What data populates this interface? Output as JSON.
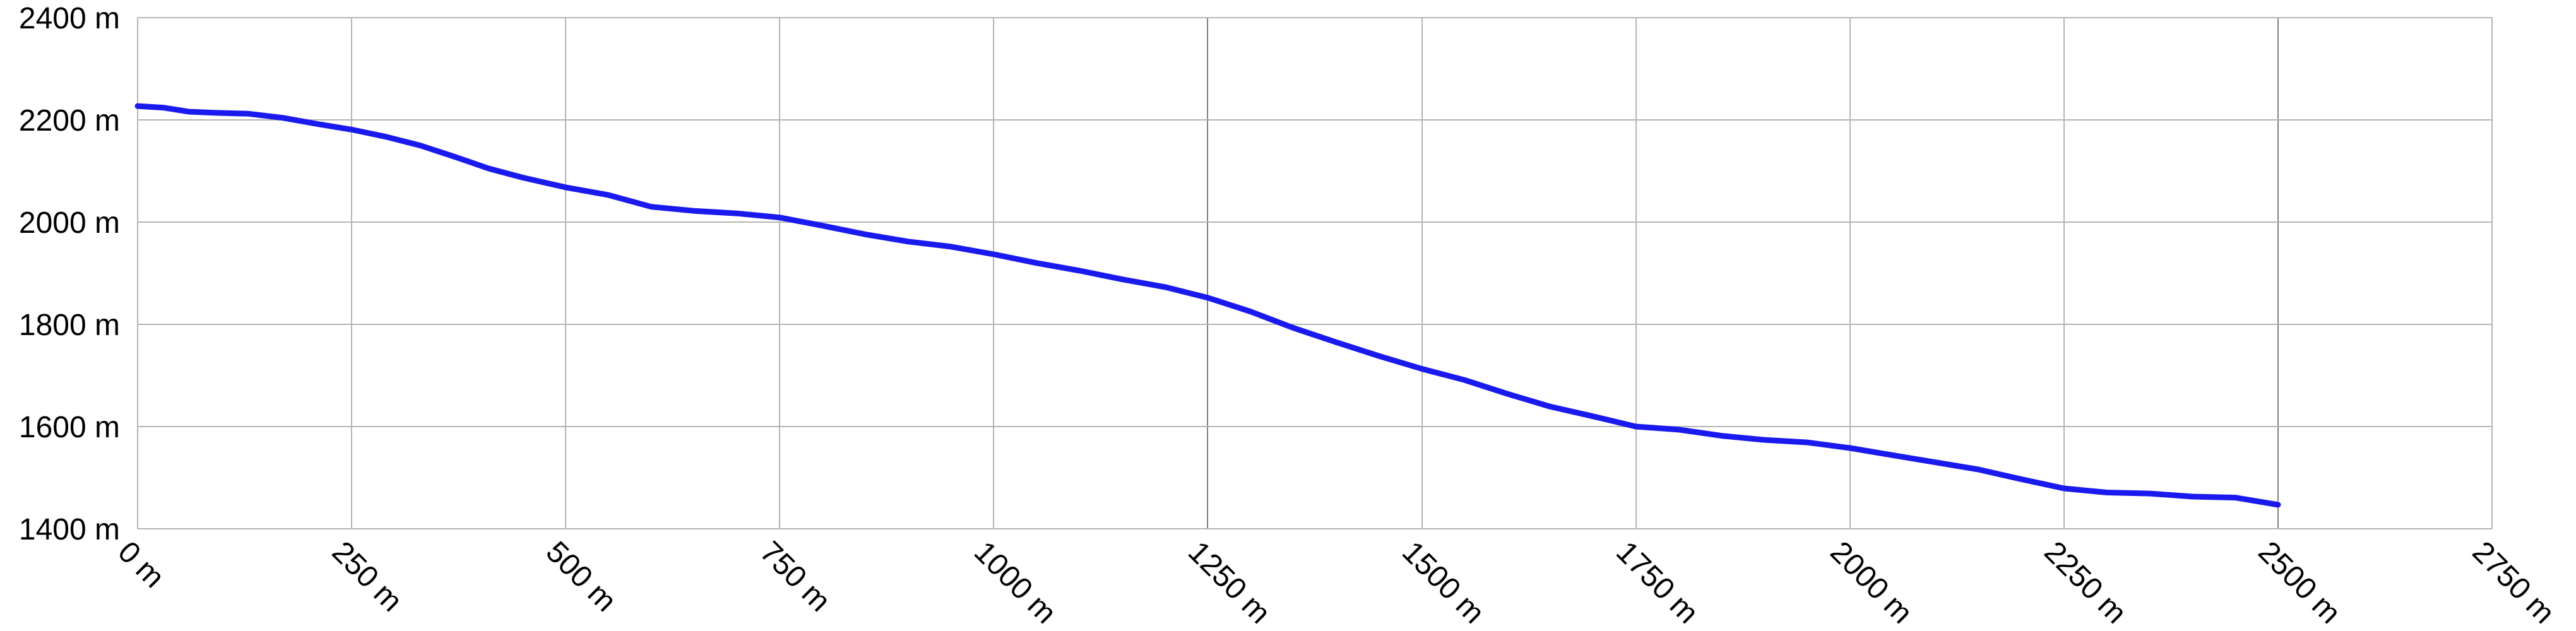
{
  "chart_data": {
    "type": "line",
    "title": "",
    "xlabel": "",
    "ylabel": "",
    "unit": "m",
    "xlim": [
      0,
      2750
    ],
    "ylim": [
      1400,
      2400
    ],
    "x_ticks": [
      0,
      250,
      500,
      750,
      1000,
      1250,
      1500,
      1750,
      2000,
      2250,
      2500,
      2750
    ],
    "x_tick_labels": [
      "0 m",
      "250 m",
      "500 m",
      "750 m",
      "1000 m",
      "1250 m",
      "1500 m",
      "1750 m",
      "2000 m",
      "2250 m",
      "2500 m",
      "2750 m"
    ],
    "y_ticks": [
      1400,
      1600,
      1800,
      2000,
      2200,
      2400
    ],
    "y_tick_labels": [
      "1400 m",
      "1600 m",
      "1800 m",
      "2000 m",
      "2200 m",
      "2400 m"
    ],
    "grid": true,
    "legend": "none",
    "line_color": "#1a1aee",
    "series": [
      {
        "x": [
          0,
          30,
          60,
          90,
          130,
          170,
          210,
          250,
          290,
          330,
          370,
          410,
          450,
          500,
          550,
          600,
          650,
          700,
          750,
          800,
          850,
          900,
          950,
          1000,
          1050,
          1100,
          1150,
          1200,
          1250,
          1300,
          1350,
          1400,
          1450,
          1500,
          1550,
          1600,
          1650,
          1700,
          1750,
          1800,
          1850,
          1900,
          1950,
          2000,
          2050,
          2100,
          2150,
          2200,
          2250,
          2300,
          2350,
          2400,
          2450,
          2500
        ],
        "y": [
          2227,
          2224,
          2216,
          2214,
          2212,
          2204,
          2192,
          2181,
          2167,
          2150,
          2128,
          2105,
          2087,
          2068,
          2053,
          2030,
          2022,
          2017,
          2009,
          1993,
          1976,
          1962,
          1952,
          1937,
          1920,
          1905,
          1888,
          1873,
          1852,
          1825,
          1793,
          1765,
          1738,
          1713,
          1691,
          1664,
          1639,
          1620,
          1600,
          1594,
          1582,
          1574,
          1569,
          1558,
          1544,
          1530,
          1516,
          1497,
          1479,
          1471,
          1469,
          1463,
          1461,
          1447
        ]
      }
    ]
  }
}
